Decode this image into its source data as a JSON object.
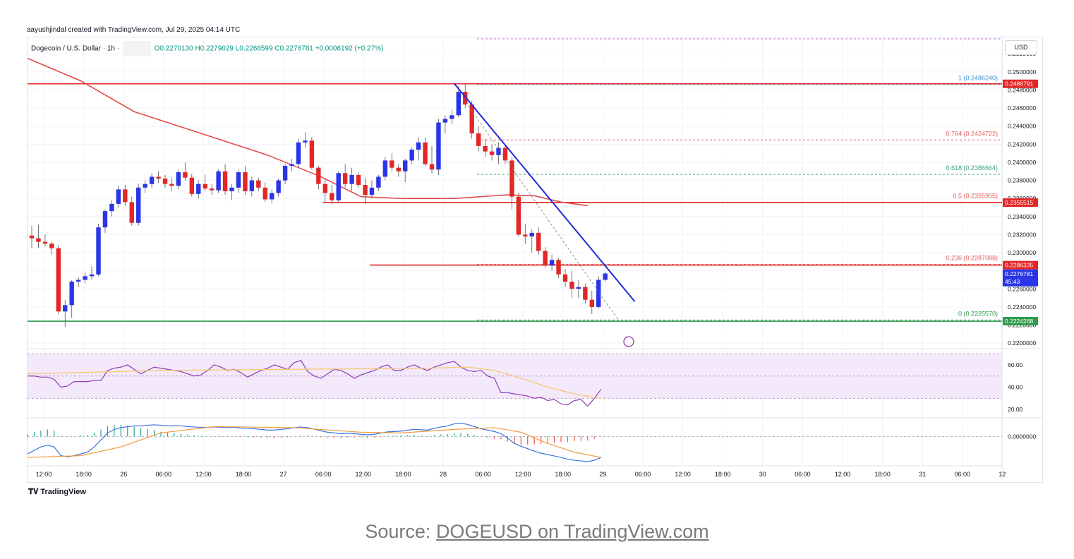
{
  "author_line": "aayushjindal created with TradingView.com, Jul 29, 2025 04:14 UTC",
  "legend": {
    "symbol": "Dogecoin / U.S. Dollar · 1h ·",
    "ohlc": "O0.2270130 H0.2279029 L0.2268599 C0.2276781 +0.0006192 (+0.27%)"
  },
  "currency_label": "USD",
  "branding": "TradingView",
  "source": {
    "prefix": "Source: ",
    "link_text": "DOGEUSD on TradingView.com"
  },
  "colors": {
    "up": "#2a35e8",
    "down": "#e32626",
    "ma": "#e44a4a",
    "trend": "#1f2bd9",
    "fib": "#e35d5d",
    "support": "#2e9a4b",
    "rsi": "#8e3fb2",
    "rsi_ma": "#f3c86a",
    "macd": "#3b73e0",
    "signal": "#f29a3f"
  },
  "chart_data": {
    "type": "candlestick",
    "price_ylim": [
      0.2197,
      0.2535
    ],
    "price_ticks": [
      "0.2520000",
      "0.2500000",
      "0.2480000",
      "0.2460000",
      "0.2440000",
      "0.2420000",
      "0.2400000",
      "0.2380000",
      "0.2360000",
      "0.2340000",
      "0.2320000",
      "0.2300000",
      "0.2280000",
      "0.2260000",
      "0.2240000",
      "0.2220000",
      "0.2200000"
    ],
    "x_ticks": [
      "12:00",
      "18:00",
      "26",
      "06:00",
      "12:00",
      "18:00",
      "27",
      "06:00",
      "12:00",
      "18:00",
      "28",
      "06:00",
      "12:00",
      "18:00",
      "29",
      "06:00",
      "12:00",
      "18:00",
      "30",
      "06:00",
      "12:00",
      "18:00",
      "31",
      "06:00",
      "12"
    ],
    "candles": [
      [
        0.2319,
        0.233,
        0.2305,
        0.2316
      ],
      [
        0.2316,
        0.2331,
        0.2305,
        0.2312
      ],
      [
        0.2312,
        0.232,
        0.2307,
        0.231
      ],
      [
        0.231,
        0.2312,
        0.2298,
        0.2305
      ],
      [
        0.2305,
        0.2308,
        0.2232,
        0.2235
      ],
      [
        0.2235,
        0.2248,
        0.2218,
        0.2242
      ],
      [
        0.2242,
        0.227,
        0.2228,
        0.2268
      ],
      [
        0.2268,
        0.2273,
        0.2262,
        0.227
      ],
      [
        0.227,
        0.2278,
        0.2266,
        0.2274
      ],
      [
        0.2274,
        0.2285,
        0.227,
        0.2276
      ],
      [
        0.2276,
        0.2332,
        0.2274,
        0.2328
      ],
      [
        0.2328,
        0.2348,
        0.2322,
        0.2346
      ],
      [
        0.2346,
        0.2358,
        0.234,
        0.2354
      ],
      [
        0.2354,
        0.2374,
        0.235,
        0.237
      ],
      [
        0.237,
        0.2375,
        0.2352,
        0.2356
      ],
      [
        0.2356,
        0.2362,
        0.233,
        0.2333
      ],
      [
        0.2333,
        0.2376,
        0.233,
        0.2372
      ],
      [
        0.2372,
        0.238,
        0.2366,
        0.2376
      ],
      [
        0.2376,
        0.2388,
        0.2372,
        0.2384
      ],
      [
        0.2384,
        0.239,
        0.2377,
        0.2382
      ],
      [
        0.2382,
        0.2386,
        0.2372,
        0.2376
      ],
      [
        0.2376,
        0.2383,
        0.2368,
        0.2374
      ],
      [
        0.2374,
        0.2392,
        0.237,
        0.2389
      ],
      [
        0.2389,
        0.24,
        0.238,
        0.2383
      ],
      [
        0.2383,
        0.2387,
        0.2362,
        0.2365
      ],
      [
        0.2365,
        0.238,
        0.236,
        0.2376
      ],
      [
        0.2376,
        0.2386,
        0.2368,
        0.2371
      ],
      [
        0.2371,
        0.2376,
        0.2364,
        0.2369
      ],
      [
        0.2369,
        0.2392,
        0.2366,
        0.239
      ],
      [
        0.239,
        0.2398,
        0.2364,
        0.2368
      ],
      [
        0.2368,
        0.2376,
        0.2358,
        0.2372
      ],
      [
        0.2372,
        0.2392,
        0.2366,
        0.2389
      ],
      [
        0.2389,
        0.2396,
        0.2364,
        0.2368
      ],
      [
        0.2368,
        0.2384,
        0.2362,
        0.238
      ],
      [
        0.238,
        0.2383,
        0.2368,
        0.2372
      ],
      [
        0.2372,
        0.2378,
        0.2356,
        0.2359
      ],
      [
        0.2359,
        0.237,
        0.2355,
        0.2366
      ],
      [
        0.2366,
        0.2382,
        0.2362,
        0.238
      ],
      [
        0.238,
        0.2398,
        0.2376,
        0.2396
      ],
      [
        0.2396,
        0.2404,
        0.239,
        0.2398
      ],
      [
        0.2398,
        0.2426,
        0.2394,
        0.2422
      ],
      [
        0.2422,
        0.2433,
        0.2416,
        0.2424
      ],
      [
        0.2424,
        0.2428,
        0.2392,
        0.2394
      ],
      [
        0.2394,
        0.2396,
        0.237,
        0.2376
      ],
      [
        0.2376,
        0.2382,
        0.2356,
        0.2366
      ],
      [
        0.2366,
        0.2375,
        0.2354,
        0.2358
      ],
      [
        0.2358,
        0.239,
        0.2356,
        0.2388
      ],
      [
        0.2388,
        0.2398,
        0.2372,
        0.2376
      ],
      [
        0.2376,
        0.2394,
        0.2368,
        0.2386
      ],
      [
        0.2386,
        0.2389,
        0.2372,
        0.2375
      ],
      [
        0.2375,
        0.2383,
        0.2354,
        0.2364
      ],
      [
        0.2364,
        0.238,
        0.236,
        0.2372
      ],
      [
        0.2372,
        0.2386,
        0.2368,
        0.2384
      ],
      [
        0.2384,
        0.2406,
        0.238,
        0.2402
      ],
      [
        0.2402,
        0.241,
        0.239,
        0.2394
      ],
      [
        0.2394,
        0.2398,
        0.2384,
        0.239
      ],
      [
        0.239,
        0.2404,
        0.2378,
        0.2402
      ],
      [
        0.2402,
        0.2416,
        0.2398,
        0.2414
      ],
      [
        0.2414,
        0.2428,
        0.2402,
        0.2422
      ],
      [
        0.2422,
        0.2428,
        0.2396,
        0.2398
      ],
      [
        0.2398,
        0.2418,
        0.2388,
        0.2392
      ],
      [
        0.2392,
        0.2448,
        0.2386,
        0.2444
      ],
      [
        0.2444,
        0.2452,
        0.2432,
        0.2448
      ],
      [
        0.2448,
        0.2458,
        0.2442,
        0.2452
      ],
      [
        0.2452,
        0.2484,
        0.245,
        0.2478
      ],
      [
        0.2478,
        0.2487,
        0.246,
        0.2464
      ],
      [
        0.2464,
        0.2468,
        0.2426,
        0.2432
      ],
      [
        0.2432,
        0.244,
        0.2412,
        0.2418
      ],
      [
        0.2418,
        0.2426,
        0.2406,
        0.2412
      ],
      [
        0.2412,
        0.242,
        0.2402,
        0.2408
      ],
      [
        0.2408,
        0.2422,
        0.2398,
        0.2416
      ],
      [
        0.2416,
        0.2418,
        0.2398,
        0.2402
      ],
      [
        0.2402,
        0.2406,
        0.2348,
        0.2362
      ],
      [
        0.2362,
        0.2366,
        0.2318,
        0.232
      ],
      [
        0.232,
        0.2332,
        0.231,
        0.2318
      ],
      [
        0.2318,
        0.2326,
        0.23,
        0.2322
      ],
      [
        0.2322,
        0.2328,
        0.2298,
        0.2302
      ],
      [
        0.2302,
        0.2306,
        0.2283,
        0.2286
      ],
      [
        0.2286,
        0.2298,
        0.228,
        0.2292
      ],
      [
        0.2292,
        0.2294,
        0.2272,
        0.2276
      ],
      [
        0.2276,
        0.2282,
        0.2262,
        0.2268
      ],
      [
        0.2268,
        0.228,
        0.225,
        0.226
      ],
      [
        0.226,
        0.227,
        0.225,
        0.2262
      ],
      [
        0.2262,
        0.2266,
        0.2244,
        0.2248
      ],
      [
        0.2248,
        0.2258,
        0.2232,
        0.224
      ],
      [
        0.224,
        0.2274,
        0.2238,
        0.227
      ],
      [
        0.227,
        0.2279,
        0.2268,
        0.2277
      ]
    ],
    "moving_average": [
      [
        0,
        0.2515
      ],
      [
        8,
        0.249
      ],
      [
        16,
        0.2456
      ],
      [
        26,
        0.2432
      ],
      [
        36,
        0.2408
      ],
      [
        44,
        0.2384
      ],
      [
        50,
        0.2362
      ],
      [
        56,
        0.236
      ],
      [
        64,
        0.236
      ],
      [
        68,
        0.2362
      ],
      [
        72,
        0.2364
      ],
      [
        76,
        0.2363
      ],
      [
        80,
        0.2356
      ],
      [
        84,
        0.2352
      ]
    ],
    "price_lines": [
      {
        "label": "0.2486791",
        "value": 0.24868,
        "kind": "resistance"
      },
      {
        "label": "0.2355515",
        "value": 0.23555,
        "kind": "resistance"
      },
      {
        "label": "0.2286335",
        "value": 0.22863,
        "kind": "resistance"
      },
      {
        "label": "0.2224268",
        "value": 0.22243,
        "kind": "support"
      }
    ],
    "fib_levels": [
      {
        "label": "1 (0.2486240)",
        "value": 0.24862
      },
      {
        "label": "0.764 (0.2424722)",
        "value": 0.24247
      },
      {
        "label": "0.618 (0.2386664)",
        "value": 0.23867
      },
      {
        "label": "0.5 (0.2355905)",
        "value": 0.23559
      },
      {
        "label": "0.236 (0.2287088)",
        "value": 0.22871
      },
      {
        "label": "0 (0.2225570)",
        "value": 0.22256
      }
    ],
    "last_price": {
      "label": "0.2276781",
      "countdown": "45:43",
      "value": 0.22768
    },
    "trendline": [
      [
        64,
        0.2487
      ],
      [
        88,
        0.2246
      ]
    ],
    "rsi": {
      "ticks": [
        "60.00",
        "40.00",
        "20.00"
      ],
      "ylim": [
        15,
        72
      ],
      "values": [
        50,
        50,
        49,
        49,
        47,
        40,
        41,
        45,
        45,
        45,
        46,
        46,
        55,
        57,
        58,
        60,
        56,
        52,
        55,
        58,
        57,
        56,
        55,
        54,
        52,
        50,
        51,
        55,
        60,
        58,
        55,
        56,
        53,
        49,
        52,
        55,
        57,
        60,
        58,
        56,
        62,
        64,
        54,
        50,
        48,
        52,
        56,
        55,
        52,
        48,
        51,
        53,
        55,
        58,
        60,
        55,
        55,
        58,
        60,
        57,
        55,
        58,
        60,
        62,
        63,
        58,
        55,
        54,
        55,
        50,
        48,
        35,
        35,
        34,
        33,
        32,
        30,
        31,
        28,
        29,
        25,
        24,
        28,
        29,
        23,
        30,
        38
      ],
      "ma_values": [
        [
          0,
          52
        ],
        [
          20,
          55
        ],
        [
          40,
          56
        ],
        [
          60,
          57
        ],
        [
          66,
          58
        ],
        [
          70,
          55
        ],
        [
          74,
          48
        ],
        [
          78,
          40
        ],
        [
          82,
          34
        ],
        [
          86,
          30
        ]
      ]
    },
    "macd": {
      "ylim": [
        -0.0008,
        0.00045
      ],
      "macd_values": [
        -0.0005,
        -0.0004,
        -0.0003,
        -0.00025,
        -0.0003,
        -0.00055,
        -0.00058,
        -0.00055,
        -0.0005,
        -0.00045,
        -0.0003,
        -0.0001,
        0.0001,
        0.0002,
        0.00025,
        0.00028,
        0.0003,
        0.0003,
        0.00032,
        0.00033,
        0.00032,
        0.0003,
        0.00031,
        0.0003,
        0.00028,
        0.00027,
        0.00026,
        0.00026,
        0.00027,
        0.00026,
        0.00025,
        0.00026,
        0.00024,
        0.00023,
        0.00022,
        0.0002,
        0.00018,
        0.00018,
        0.0002,
        0.00022,
        0.00025,
        0.00027,
        0.00025,
        0.00021,
        0.00016,
        0.00012,
        0.0001,
        8e-05,
        9e-05,
        8e-05,
        6e-05,
        5e-05,
        6e-05,
        0.0001,
        0.00013,
        0.00014,
        0.00015,
        0.00018,
        0.0002,
        0.00019,
        0.00018,
        0.00023,
        0.00027,
        0.0003,
        0.00036,
        0.00038,
        0.00034,
        0.00028,
        0.00022,
        0.00018,
        0.00014,
        8e-05,
        -5e-05,
        -0.0002,
        -0.00028,
        -0.00035,
        -0.00042,
        -0.00048,
        -0.00052,
        -0.00056,
        -0.0006,
        -0.00065,
        -0.00068,
        -0.0007,
        -0.00072,
        -0.00068,
        -0.0006
      ],
      "signal_values": [
        [
          0,
          -0.0006
        ],
        [
          8,
          -0.00055
        ],
        [
          14,
          -0.0003
        ],
        [
          20,
          0.0001
        ],
        [
          28,
          0.00028
        ],
        [
          40,
          0.00025
        ],
        [
          50,
          0.00012
        ],
        [
          56,
          0.0001
        ],
        [
          64,
          0.0002
        ],
        [
          70,
          0.00025
        ],
        [
          74,
          0.00012
        ],
        [
          78,
          -0.0002
        ],
        [
          82,
          -0.00045
        ],
        [
          86,
          -0.0006
        ]
      ]
    }
  }
}
